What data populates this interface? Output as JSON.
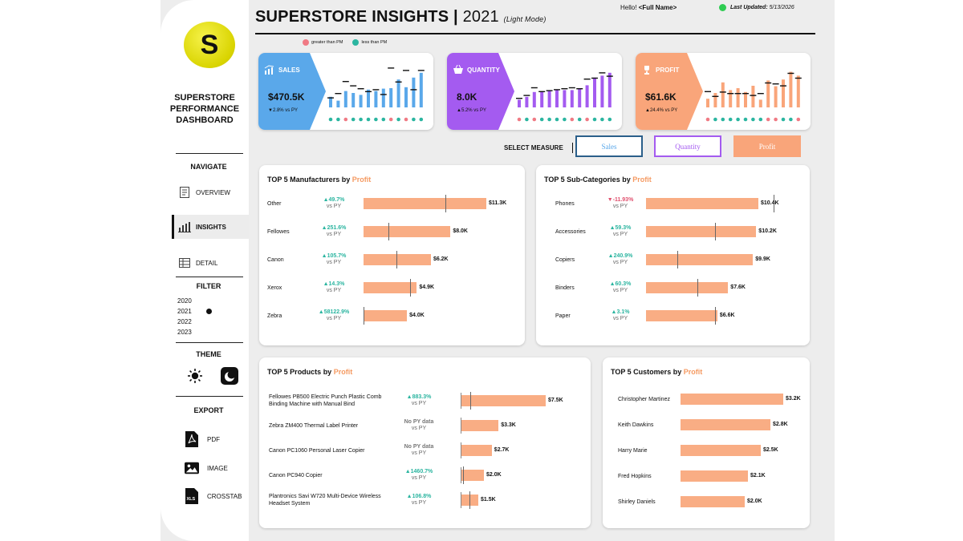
{
  "colors": {
    "sales": "#5aa8ea",
    "quantity": "#a45bf0",
    "profit": "#f9a57a",
    "up": "#2bb5a0",
    "down": "#f07a84",
    "bar": "#f9ad84"
  },
  "sidebar": {
    "logo_letter": "S",
    "title": "SUPERSTORE PERFORMANCE DASHBOARD",
    "navigate_heading": "NAVIGATE",
    "nav": [
      {
        "label": "OVERVIEW",
        "icon": "document-icon",
        "active": false
      },
      {
        "label": "INSIGHTS",
        "icon": "bar-chart-icon",
        "active": true
      },
      {
        "label": "DETAIL",
        "icon": "table-icon",
        "active": false
      }
    ],
    "filter_heading": "FILTER",
    "years": [
      "2020",
      "2021",
      "2022",
      "2023"
    ],
    "selected_year": "2021",
    "theme_heading": "THEME",
    "export_heading": "EXPORT",
    "export": [
      {
        "label": "PDF",
        "icon": "pdf-icon"
      },
      {
        "label": "IMAGE",
        "icon": "image-icon"
      },
      {
        "label": "CROSSTAB",
        "icon": "xls-icon"
      }
    ]
  },
  "header": {
    "title": "SUPERSTORE INSIGHTS",
    "year": "2021",
    "mode": "(Light Mode)",
    "hello_prefix": "Hello!",
    "user": "<Full Name>",
    "updated_label": "Last Updated:",
    "updated_date": "5/13/2026"
  },
  "legend": {
    "greater": "greater than PM",
    "less": "less than PM"
  },
  "kpis": [
    {
      "key": "sales",
      "label": "SALES",
      "value": "$470.5K",
      "change": "▼2.8% vs PY",
      "bars": [
        0.22,
        0.14,
        0.34,
        0.3,
        0.26,
        0.37,
        0.34,
        0.39,
        0.4,
        0.58,
        0.42,
        0.62,
        0.72
      ],
      "marks": [
        0.21,
        0.3,
        0.55,
        0.46,
        0.4,
        0.34,
        0.38,
        0.28,
        0.83,
        0.54,
        0.78,
        0.38,
        0.78
      ],
      "dots": [
        "up",
        "up",
        "down",
        "up",
        "up",
        "up",
        "up",
        "up",
        "down",
        "up",
        "down",
        "up",
        "up"
      ]
    },
    {
      "key": "quantity",
      "label": "QUANTITY",
      "value": "8.0K",
      "change": "▲5.2% vs PY",
      "bars": [
        0.16,
        0.22,
        0.32,
        0.32,
        0.34,
        0.36,
        0.36,
        0.36,
        0.4,
        0.46,
        0.62,
        0.66,
        0.72
      ],
      "marks": [
        0.2,
        0.26,
        0.42,
        0.34,
        0.36,
        0.38,
        0.4,
        0.42,
        0.4,
        0.6,
        0.62,
        0.73,
        0.66
      ],
      "dots": [
        "down",
        "up",
        "down",
        "up",
        "up",
        "up",
        "up",
        "down",
        "up",
        "down",
        "up",
        "up",
        "up"
      ]
    },
    {
      "key": "profit",
      "label": "PROFIT",
      "value": "$61.6K",
      "change": "▲24.4% vs PY",
      "bars": [
        0.18,
        0.3,
        0.52,
        0.36,
        0.4,
        0.32,
        0.45,
        0.16,
        0.56,
        0.44,
        0.58,
        0.74,
        0.66
      ],
      "marks": [
        0.34,
        0.24,
        0.33,
        0.3,
        0.3,
        0.3,
        0.26,
        0.3,
        0.52,
        0.5,
        0.46,
        0.72,
        0.62
      ],
      "dots": [
        "down",
        "up",
        "up",
        "up",
        "up",
        "up",
        "up",
        "up",
        "down",
        "down",
        "up",
        "up",
        "down"
      ]
    }
  ],
  "select_measure": {
    "label": "SELECT MEASURE",
    "options": [
      "Sales",
      "Quantity",
      "Profit"
    ],
    "selected": "Profit"
  },
  "cards": {
    "manufacturers": {
      "title_prefix": "TOP 5 Manufacturers by",
      "title_measure": "Profit",
      "vs": "vs PY",
      "rows": [
        {
          "name": "Other",
          "change": "▲49.7%",
          "dir": "up",
          "value": 11.3,
          "label": "$11.3K",
          "py": 7.55
        },
        {
          "name": "Fellowes",
          "change": "▲251.6%",
          "dir": "up",
          "value": 8.0,
          "label": "$8.0K",
          "py": 2.28
        },
        {
          "name": "Canon",
          "change": "▲105.7%",
          "dir": "up",
          "value": 6.2,
          "label": "$6.2K",
          "py": 3.01
        },
        {
          "name": "Xerox",
          "change": "▲14.3%",
          "dir": "up",
          "value": 4.9,
          "label": "$4.9K",
          "py": 4.29
        },
        {
          "name": "Zebra",
          "change": "▲58122.9%",
          "dir": "up",
          "value": 4.0,
          "label": "$4.0K",
          "py": 0.01
        }
      ]
    },
    "subcategories": {
      "title_prefix": "TOP 5 Sub-Categories by",
      "title_measure": "Profit",
      "vs": "vs PY",
      "rows": [
        {
          "name": "Phones",
          "change": "▼-11.93%",
          "dir": "down",
          "value": 10.4,
          "label": "$10.4K",
          "py": 11.8
        },
        {
          "name": "Accessories",
          "change": "▲59.3%",
          "dir": "up",
          "value": 10.2,
          "label": "$10.2K",
          "py": 6.4
        },
        {
          "name": "Copiers",
          "change": "▲240.9%",
          "dir": "up",
          "value": 9.9,
          "label": "$9.9K",
          "py": 2.9
        },
        {
          "name": "Binders",
          "change": "▲60.3%",
          "dir": "up",
          "value": 7.6,
          "label": "$7.6K",
          "py": 4.74
        },
        {
          "name": "Paper",
          "change": "▲3.1%",
          "dir": "up",
          "value": 6.6,
          "label": "$6.6K",
          "py": 6.4
        }
      ]
    },
    "products": {
      "title_prefix": "TOP 5 Products by",
      "title_measure": "Profit",
      "vs": "vs PY",
      "rows": [
        {
          "name": "Fellowes PB500 Electric Punch Plastic Comb Binding Machine with Manual Bind",
          "change": "▲883.3%",
          "dir": "up",
          "value": 7.5,
          "label": "$7.5K",
          "py": 0.76
        },
        {
          "name": "Zebra ZM400 Thermal Label Printer",
          "change": "No PY data",
          "dir": "none",
          "value": 3.3,
          "label": "$3.3K",
          "py": null
        },
        {
          "name": "Canon PC1060 Personal Laser Copier",
          "change": "No PY data",
          "dir": "none",
          "value": 2.7,
          "label": "$2.7K",
          "py": null
        },
        {
          "name": "Canon PC940 Copier",
          "change": "▲1460.7%",
          "dir": "up",
          "value": 2.0,
          "label": "$2.0K",
          "py": 0.13
        },
        {
          "name": "Plantronics Savi W720 Multi-Device Wireless Headset System",
          "change": "▲106.8%",
          "dir": "up",
          "value": 1.5,
          "label": "$1.5K",
          "py": 0.73
        }
      ]
    },
    "customers": {
      "title_prefix": "TOP 5 Customers by",
      "title_measure": "Profit",
      "rows": [
        {
          "name": "Christopher Martinez",
          "value": 3.2,
          "label": "$3.2K"
        },
        {
          "name": "Keith Dawkins",
          "value": 2.8,
          "label": "$2.8K"
        },
        {
          "name": "Harry Marie",
          "value": 2.5,
          "label": "$2.5K"
        },
        {
          "name": "Fred Hopkins",
          "value": 2.1,
          "label": "$2.1K"
        },
        {
          "name": "Shirley Daniels",
          "value": 2.0,
          "label": "$2.0K"
        }
      ]
    }
  }
}
